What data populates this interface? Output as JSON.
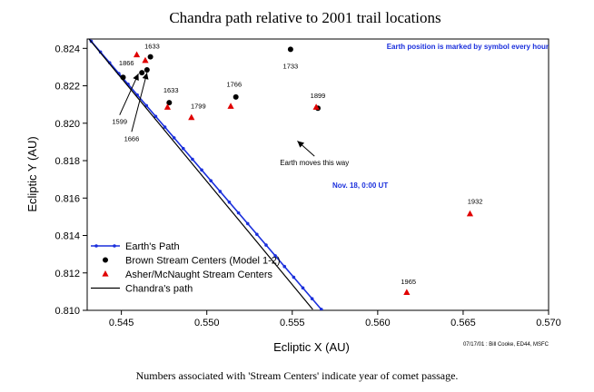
{
  "chart_data": {
    "type": "scatter",
    "title": "Chandra path relative to 2001 trail locations",
    "xlabel": "Ecliptic X (AU)",
    "ylabel": "Ecliptic Y (AU)",
    "xlim": [
      0.543,
      0.57
    ],
    "ylim": [
      0.81,
      0.8245
    ],
    "x_ticks": [
      0.545,
      0.55,
      0.555,
      0.56,
      0.565,
      0.57
    ],
    "x_tick_labels": [
      "0.545",
      "0.550",
      "0.555",
      "0.560",
      "0.565",
      "0.570"
    ],
    "y_ticks": [
      0.81,
      0.812,
      0.814,
      0.816,
      0.818,
      0.82,
      0.822,
      0.824
    ],
    "y_tick_labels": [
      "0.810",
      "0.812",
      "0.814",
      "0.816",
      "0.818",
      "0.820",
      "0.822",
      "0.824"
    ],
    "grid": false,
    "legend_position": "bottom-left",
    "series": [
      {
        "name": "Earth's Path",
        "kind": "line-markers",
        "color": "#1a2fdc",
        "points": [
          [
            0.5427,
            0.82495
          ],
          [
            0.5567,
            0.81005
          ]
        ],
        "marker_step": 0.00052
      },
      {
        "name": "Brown Stream Centers (Model 1-2)",
        "kind": "markers",
        "marker": "circle",
        "color": "#000000",
        "points": [
          {
            "x": 0.5451,
            "y": 0.82245
          },
          {
            "x": 0.5462,
            "y": 0.8227
          },
          {
            "x": 0.5465,
            "y": 0.82285
          },
          {
            "x": 0.5467,
            "y": 0.82355
          },
          {
            "x": 0.5478,
            "y": 0.8211
          },
          {
            "x": 0.5517,
            "y": 0.8214
          },
          {
            "x": 0.5549,
            "y": 0.82395
          },
          {
            "x": 0.5565,
            "y": 0.8208
          }
        ]
      },
      {
        "name": "Asher/McNaught Stream Centers",
        "kind": "markers",
        "marker": "triangle",
        "color": "#e00000",
        "points": [
          {
            "x": 0.5459,
            "y": 0.82365
          },
          {
            "x": 0.5464,
            "y": 0.82335
          },
          {
            "x": 0.5477,
            "y": 0.82085
          },
          {
            "x": 0.5491,
            "y": 0.8203
          },
          {
            "x": 0.5514,
            "y": 0.8209
          },
          {
            "x": 0.5564,
            "y": 0.82085
          },
          {
            "x": 0.5654,
            "y": 0.81515
          },
          {
            "x": 0.5617,
            "y": 0.81095
          }
        ]
      },
      {
        "name": "Chandra's path",
        "kind": "line",
        "color": "#000000",
        "points": [
          [
            0.5427,
            0.82495
          ],
          [
            0.5562,
            0.81005
          ]
        ]
      }
    ],
    "annotations": [
      {
        "text": "1633",
        "x": 0.5468,
        "y": 0.82385,
        "dx": 0,
        "dy": -3,
        "arrow": false
      },
      {
        "text": "1866",
        "x": 0.5453,
        "y": 0.82295,
        "dx": 0,
        "dy": -3,
        "arrow": false
      },
      {
        "text": "1633",
        "x": 0.5479,
        "y": 0.8215,
        "dx": 0,
        "dy": -3,
        "arrow": false
      },
      {
        "text": "1766",
        "x": 0.5516,
        "y": 0.8218,
        "dx": 0,
        "dy": -3,
        "arrow": false
      },
      {
        "text": "1733",
        "x": 0.5549,
        "y": 0.8233,
        "dx": 0,
        "dy": 8,
        "arrow": false
      },
      {
        "text": "1799",
        "x": 0.5495,
        "y": 0.82065,
        "dx": 0,
        "dy": -3,
        "arrow": false
      },
      {
        "text": "1899",
        "x": 0.5565,
        "y": 0.8212,
        "dx": 0,
        "dy": -3,
        "arrow": false
      },
      {
        "text": "1932",
        "x": 0.5657,
        "y": 0.81555,
        "dx": 0,
        "dy": -3,
        "arrow": false
      },
      {
        "text": "1965",
        "x": 0.5618,
        "y": 0.81125,
        "dx": 0,
        "dy": -3,
        "arrow": false
      },
      {
        "text": "1599",
        "x": 0.5449,
        "y": 0.82015,
        "dx": 0,
        "dy": 4,
        "arrow": true,
        "to": [
          0.546,
          0.82265
        ]
      },
      {
        "text": "1666",
        "x": 0.5456,
        "y": 0.81925,
        "dx": 0,
        "dy": 4,
        "arrow": true,
        "to": [
          0.5465,
          0.8227
        ]
      },
      {
        "text": "Earth moves this way",
        "x": 0.5563,
        "y": 0.81795,
        "dx": 0,
        "dy": 4,
        "arrow": true,
        "to": [
          0.5553,
          0.81905
        ]
      }
    ],
    "notes": [
      {
        "text": "Earth position is marked by symbol every hour",
        "color": "#1a2fdc"
      },
      {
        "text": "Nov. 18, 0:00 UT",
        "color": "#1a2fdc"
      }
    ],
    "credit": "07/17/01 : Bill Cooke, ED44, MSFC"
  },
  "caption": "Numbers associated with 'Stream Centers' indicate year of comet passage."
}
